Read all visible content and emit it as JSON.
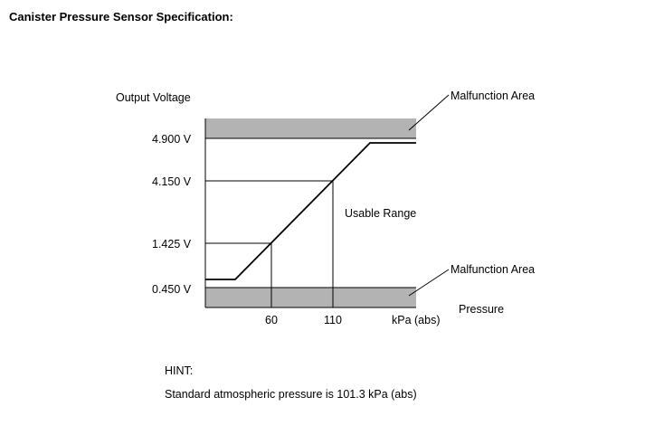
{
  "title": "Canister Pressure Sensor Specification:",
  "diagram": {
    "y_axis_label": "Output Voltage",
    "x_axis_label": "Pressure",
    "x_unit_label": "kPa (abs)",
    "voltage_labels": [
      "4.900 V",
      "4.150 V",
      "1.425 V",
      "0.450 V"
    ],
    "pressure_labels": [
      "60",
      "110"
    ],
    "usable_range_label": "Usable Range",
    "malfunction_upper_label": "Malfunction Area",
    "malfunction_lower_label": "Malfunction Area",
    "band_color": "#b3b3b3"
  },
  "hint": {
    "label": "HINT:",
    "text": "Standard atmospheric pressure is 101.3 kPa (abs)"
  }
}
